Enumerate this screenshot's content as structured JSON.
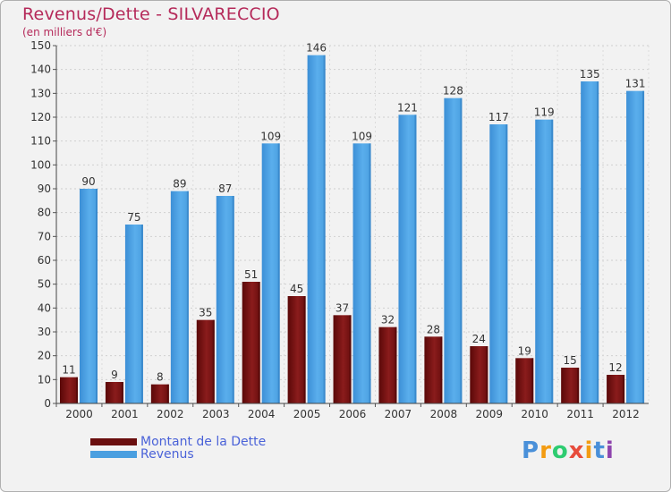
{
  "header": {
    "title": "Revenus/Dette - SILVARECCIO",
    "subtitle": "(en milliers d'€)"
  },
  "chart_data": {
    "type": "bar",
    "categories": [
      "2000",
      "2001",
      "2002",
      "2003",
      "2004",
      "2005",
      "2006",
      "2007",
      "2008",
      "2009",
      "2010",
      "2011",
      "2012"
    ],
    "series": [
      {
        "name": "Montant de la Dette",
        "color": "#7a1414",
        "values": [
          11,
          9,
          8,
          35,
          51,
          45,
          37,
          32,
          28,
          24,
          19,
          15,
          12
        ]
      },
      {
        "name": "Revenus",
        "color": "#4a9fe0",
        "values": [
          90,
          75,
          89,
          87,
          109,
          146,
          109,
          121,
          128,
          117,
          119,
          135,
          131
        ]
      }
    ],
    "title": "Revenus/Dette - SILVARECCIO",
    "ylabel": "(en milliers d'€)",
    "ylim": [
      0,
      150
    ],
    "yticks": [
      0,
      10,
      20,
      30,
      40,
      50,
      60,
      70,
      80,
      90,
      100,
      110,
      120,
      130,
      140,
      150
    ],
    "grid": true,
    "legend": "bottom-left"
  },
  "logo": {
    "letters": [
      "P",
      "r",
      "o",
      "x",
      "i",
      "t",
      "i"
    ],
    "colors": [
      "#4a90d9",
      "#f39c12",
      "#2ecc71",
      "#e74c3c",
      "#f39c12",
      "#4a90d9",
      "#8e44ad"
    ]
  }
}
